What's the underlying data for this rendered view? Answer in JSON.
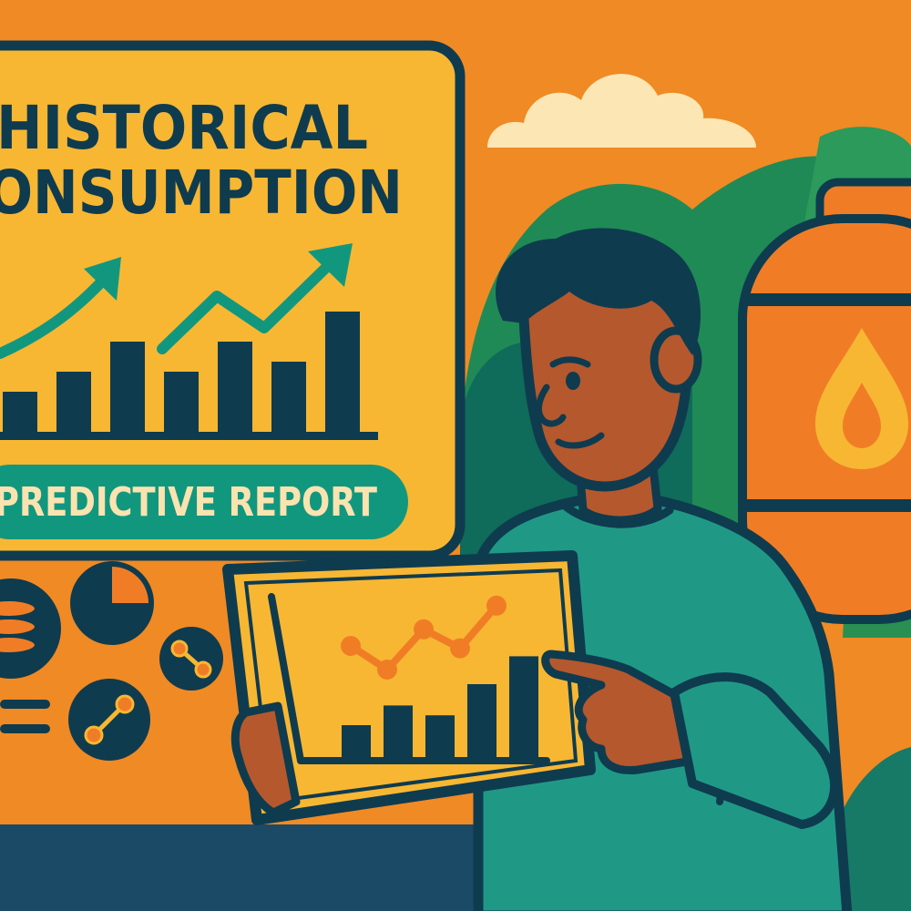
{
  "board": {
    "title_line_1": "HISTORICAL",
    "title_line_2": "CONSUMPTION",
    "badge_label": "PREDICTIVE REPORT"
  },
  "board_chart": {
    "bars": [
      2,
      3,
      4.5,
      3,
      4.5,
      3.5,
      6
    ]
  },
  "tablet_chart": {
    "bars": [
      2,
      3.2,
      2.6,
      4.5,
      6.2
    ],
    "line": [
      3.5,
      2.5,
      4.2,
      3.4,
      5.2
    ]
  },
  "icons": [
    "coin-stack-icon",
    "pie-chart-icon",
    "network-node-icon",
    "connection-icon",
    "fuel-drop-icon"
  ],
  "colors": {
    "background": "#f08a24",
    "board": "#f7b733",
    "outline": "#0f3b4f",
    "teal": "#12977f",
    "shirt": "#1f9986",
    "skin": "#b5582d",
    "tank": "#f07d26"
  }
}
